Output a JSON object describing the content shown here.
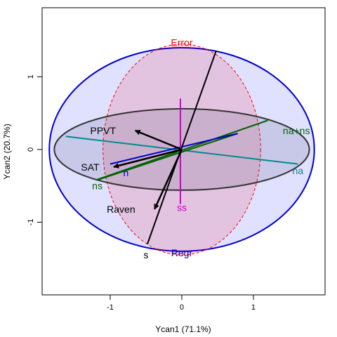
{
  "chart_data": {
    "type": "scatter",
    "title": "",
    "xlabel": "Ycan1 (71.1%)",
    "ylabel": "Ycan2 (20.7%)",
    "xlim": [
      -1.95,
      2.0
    ],
    "ylim": [
      -2.0,
      1.95
    ],
    "xticks": [
      -1,
      0,
      1
    ],
    "yticks": [
      -1,
      0,
      1
    ],
    "grid": false,
    "ellipses": [
      {
        "label": "Regr",
        "cx": 0,
        "cy": 0,
        "rx": 1.85,
        "ry": 1.4,
        "color": "#0000cd",
        "fill": "rgba(0,0,255,0.12)",
        "dashed": false,
        "label_at": [
          0,
          -1.42
        ]
      },
      {
        "label": "Error",
        "cx": 0,
        "cy": 0,
        "rx": 1.1,
        "ry": 1.45,
        "color": "#ff0000",
        "fill": "rgba(255,0,0,0.12)",
        "dashed": true,
        "label_at": [
          0,
          1.47
        ]
      },
      {
        "label": "",
        "cx": 0,
        "cy": 0,
        "rx": 1.78,
        "ry": 0.56,
        "color": "#333333",
        "fill": "rgba(70,70,110,0.15)",
        "dashed": false,
        "label_at": null
      }
    ],
    "terms": [
      {
        "label": "na+ns",
        "x1": -1.2,
        "y1": -0.42,
        "x2": 1.2,
        "y2": 0.4,
        "color": "#006400",
        "label_at": [
          1.6,
          0.26
        ]
      },
      {
        "label": "na",
        "x1": -1.62,
        "y1": 0.18,
        "x2": 1.62,
        "y2": -0.2,
        "color": "#008b8b",
        "label_at": [
          1.62,
          -0.29
        ]
      },
      {
        "label": "ns",
        "x1": -1.18,
        "y1": -0.42,
        "x2": 0.78,
        "y2": 0.22,
        "color": "#006400",
        "label_at": [
          -1.18,
          -0.5
        ]
      },
      {
        "label": "n",
        "x1": -1.0,
        "y1": -0.2,
        "x2": 0.78,
        "y2": 0.22,
        "color": "#0000cd",
        "label_at": [
          -0.78,
          -0.32
        ]
      },
      {
        "label": "s",
        "x1": -0.48,
        "y1": -1.3,
        "x2": 0.48,
        "y2": 1.36,
        "color": "#000000",
        "label_at": [
          -0.5,
          -1.45
        ]
      },
      {
        "label": "ss",
        "x1": -0.02,
        "y1": -0.75,
        "x2": -0.02,
        "y2": 0.7,
        "color": "#cc00cc",
        "label_at": [
          0,
          -0.8
        ]
      }
    ],
    "arrows": [
      {
        "label": "PPVT",
        "x": -0.65,
        "y": 0.26,
        "color": "#000000",
        "label_at": [
          -0.92,
          0.26
        ]
      },
      {
        "label": "SAT",
        "x": -0.95,
        "y": -0.24,
        "color": "#000000",
        "label_at": [
          -1.15,
          -0.24
        ]
      },
      {
        "label": "Raven",
        "x": -0.38,
        "y": -0.82,
        "color": "#000000",
        "label_at": [
          -0.65,
          -0.82
        ]
      }
    ]
  }
}
